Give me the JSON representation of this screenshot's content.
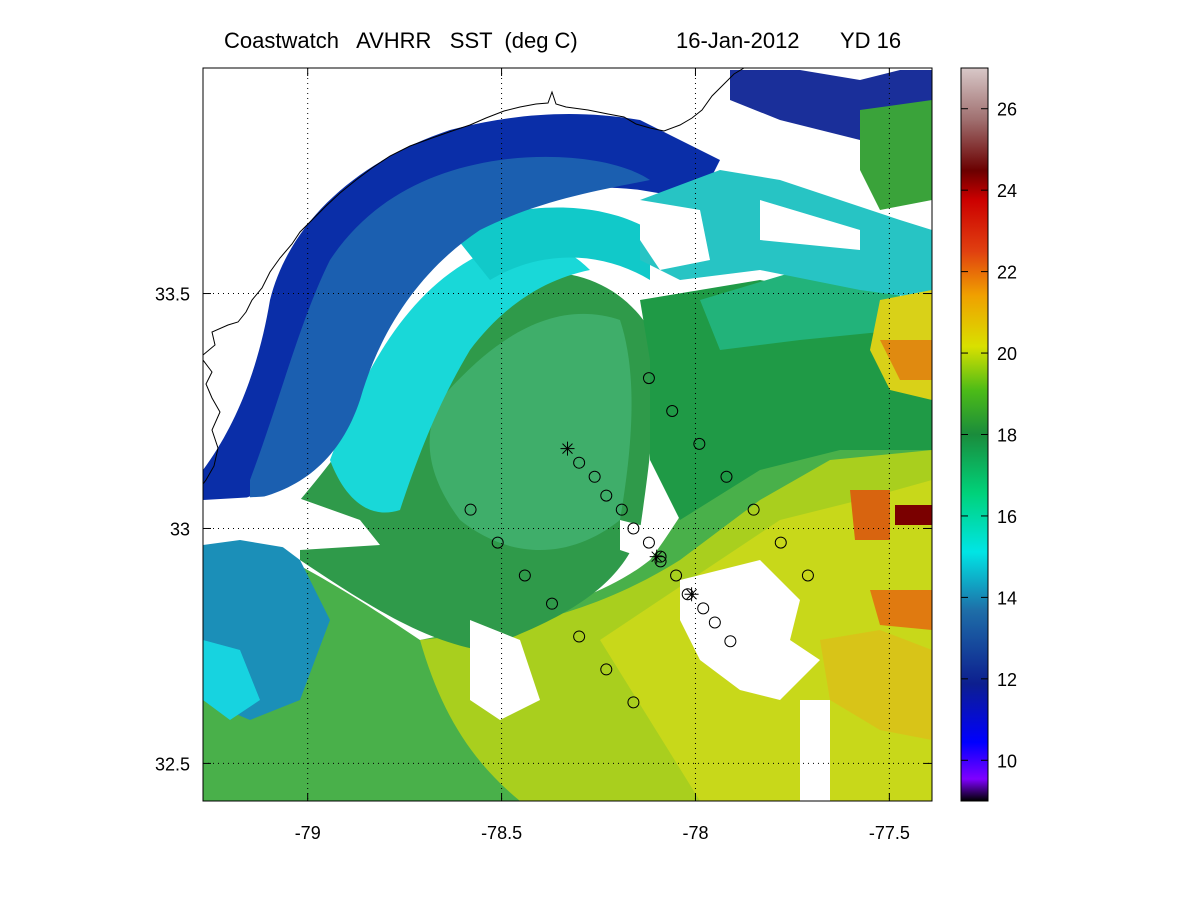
{
  "title": {
    "left": "Coastwatch   AVHRR   SST  (deg C)",
    "date": "16-Jan-2012",
    "yearday": "YD 16"
  },
  "map": {
    "lon_range": [
      -79.27,
      -77.39
    ],
    "lat_range": [
      32.42,
      33.98
    ],
    "lon_ticks": [
      "-79",
      "-78.5",
      "-78",
      "-77.5"
    ],
    "lon_tick_values": [
      -79,
      -78.5,
      -78,
      -77.5
    ],
    "lat_ticks": [
      "33.5",
      "33",
      "32.5"
    ],
    "lat_tick_values": [
      33.5,
      33,
      32.5
    ],
    "grid": "dotted"
  },
  "colorbar": {
    "range": [
      9,
      27
    ],
    "ticks": [
      "26",
      "24",
      "22",
      "20",
      "18",
      "16",
      "14",
      "12",
      "10"
    ],
    "tick_values": [
      26,
      24,
      22,
      20,
      18,
      16,
      14,
      12,
      10
    ],
    "colormap": [
      "#000000",
      "#7f00ff",
      "#0000ff",
      "#0d1f8f",
      "#1e6ea8",
      "#00e5e5",
      "#00d27a",
      "#1a8c3c",
      "#4cbb17",
      "#d9e000",
      "#f0a000",
      "#e04010",
      "#cc0000",
      "#6b0000",
      "#a07070",
      "#d8c8c8"
    ]
  },
  "stations": {
    "circles": [
      {
        "lon": -78.12,
        "lat": 33.32
      },
      {
        "lon": -78.06,
        "lat": 33.25
      },
      {
        "lon": -77.99,
        "lat": 33.18
      },
      {
        "lon": -77.92,
        "lat": 33.11
      },
      {
        "lon": -77.85,
        "lat": 33.04
      },
      {
        "lon": -77.78,
        "lat": 32.97
      },
      {
        "lon": -77.71,
        "lat": 32.9
      },
      {
        "lon": -78.3,
        "lat": 33.14
      },
      {
        "lon": -78.26,
        "lat": 33.11
      },
      {
        "lon": -78.23,
        "lat": 33.07
      },
      {
        "lon": -78.19,
        "lat": 33.04
      },
      {
        "lon": -78.16,
        "lat": 33.0
      },
      {
        "lon": -78.12,
        "lat": 32.97
      },
      {
        "lon": -78.09,
        "lat": 32.93
      },
      {
        "lon": -78.05,
        "lat": 32.9
      },
      {
        "lon": -78.02,
        "lat": 32.86
      },
      {
        "lon": -77.98,
        "lat": 32.83
      },
      {
        "lon": -77.95,
        "lat": 32.8
      },
      {
        "lon": -77.91,
        "lat": 32.76
      },
      {
        "lon": -78.58,
        "lat": 33.04
      },
      {
        "lon": -78.51,
        "lat": 32.97
      },
      {
        "lon": -78.44,
        "lat": 32.9
      },
      {
        "lon": -78.37,
        "lat": 32.84
      },
      {
        "lon": -78.3,
        "lat": 32.77
      },
      {
        "lon": -78.23,
        "lat": 32.7
      },
      {
        "lon": -78.16,
        "lat": 32.63
      },
      {
        "lon": -78.09,
        "lat": 32.94
      }
    ],
    "stars": [
      {
        "lon": -78.33,
        "lat": 33.17
      },
      {
        "lon": -78.1,
        "lat": 32.94
      },
      {
        "lon": -78.01,
        "lat": 32.86
      }
    ]
  }
}
